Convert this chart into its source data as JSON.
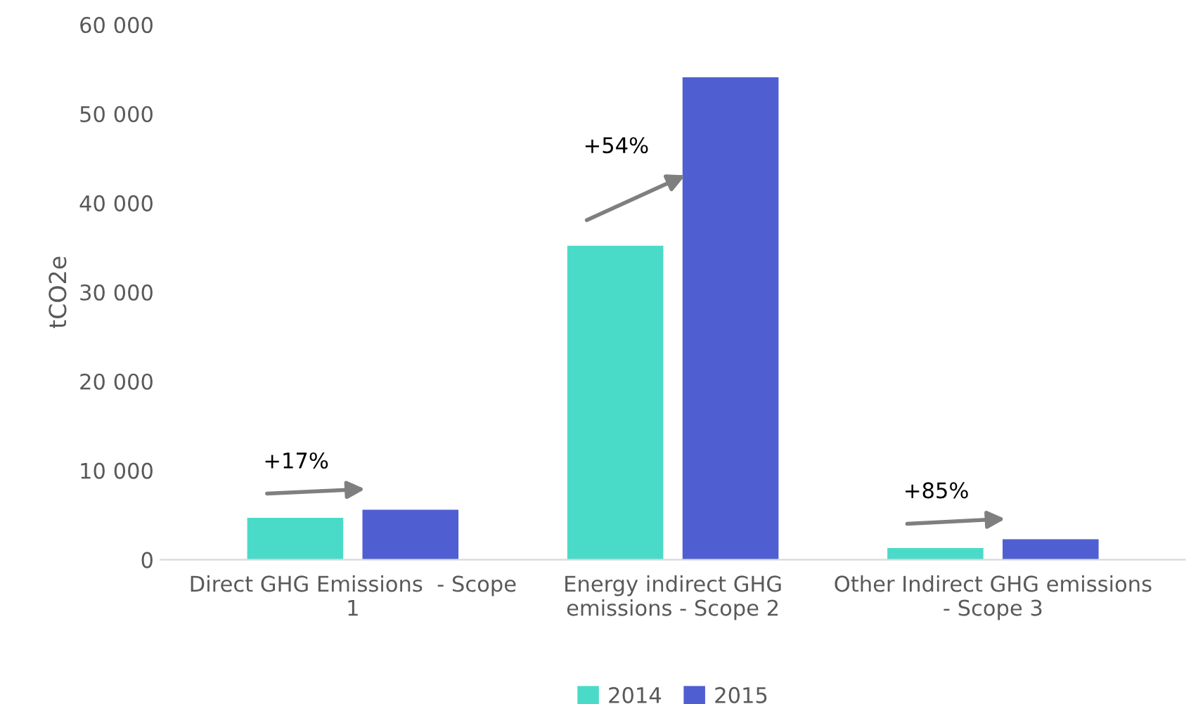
{
  "chart_data": {
    "type": "bar",
    "ylabel": "tCO2e",
    "categories": [
      "Direct GHG Emissions  - Scope\n1",
      "Energy indirect GHG\nemissions - Scope 2",
      "Other Indirect GHG emissions\n- Scope 3"
    ],
    "series": [
      {
        "name": "2014",
        "color": "#4adbc8",
        "values": [
          4700,
          35200,
          1300
        ]
      },
      {
        "name": "2015",
        "color": "#4f5fd1",
        "values": [
          5600,
          54100,
          2300
        ]
      }
    ],
    "ylim": [
      0,
      60000
    ],
    "yticks": [
      {
        "value": 0,
        "label": "0"
      },
      {
        "value": 10000,
        "label": "10 000"
      },
      {
        "value": 20000,
        "label": "20 000"
      },
      {
        "value": 30000,
        "label": "30 000"
      },
      {
        "value": 40000,
        "label": "40 000"
      },
      {
        "value": 50000,
        "label": "50 000"
      },
      {
        "value": 60000,
        "label": "60 000"
      }
    ],
    "annotations": [
      "+17%",
      "+54%",
      "+85%"
    ],
    "grid": false,
    "legend": "bottom"
  }
}
